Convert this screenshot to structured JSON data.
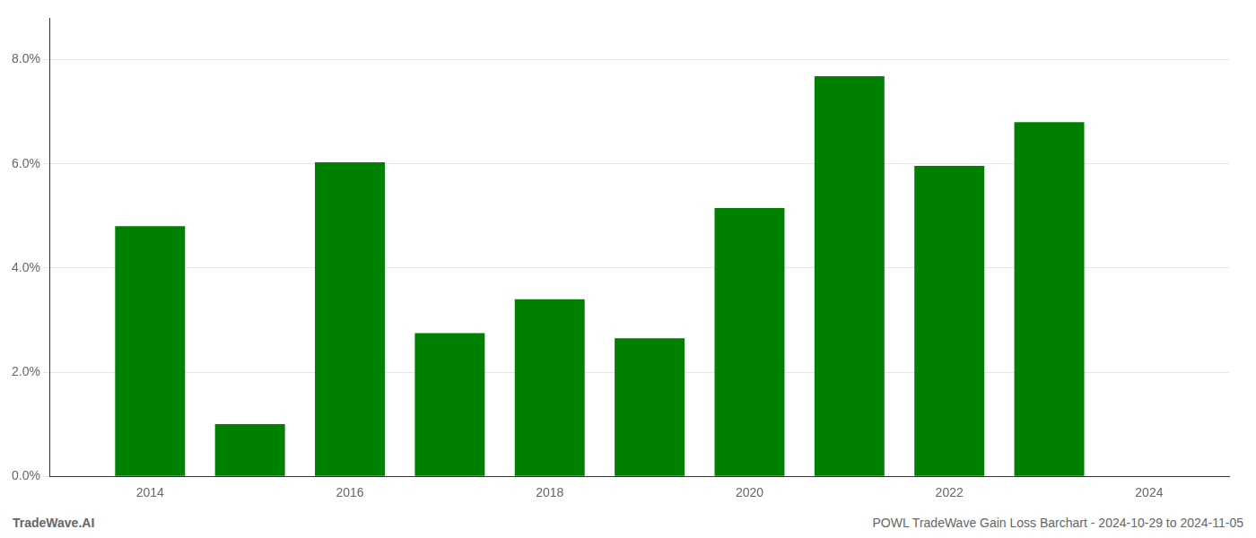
{
  "chart_data": {
    "type": "bar",
    "x": [
      2014,
      2015,
      2016,
      2017,
      2018,
      2019,
      2020,
      2021,
      2022,
      2023
    ],
    "values": [
      0.048,
      0.01,
      0.0603,
      0.0275,
      0.034,
      0.0265,
      0.0515,
      0.0768,
      0.0596,
      0.068
    ],
    "color": "#008000",
    "xlim": [
      2013.0,
      2024.8
    ],
    "xticks": [
      2014,
      2016,
      2018,
      2020,
      2022,
      2024
    ],
    "ylim": [
      0,
      0.088
    ],
    "yticks": [
      {
        "value": 0.0,
        "label": "0.0%"
      },
      {
        "value": 0.02,
        "label": "2.0%"
      },
      {
        "value": 0.04,
        "label": "4.0%"
      },
      {
        "value": 0.06,
        "label": "6.0%"
      },
      {
        "value": 0.08,
        "label": "8.0%"
      }
    ],
    "grid": true,
    "annotations": [
      "TradeWave.AI",
      "POWL TradeWave Gain Loss Barchart - 2024-10-29 to 2024-11-05"
    ]
  }
}
